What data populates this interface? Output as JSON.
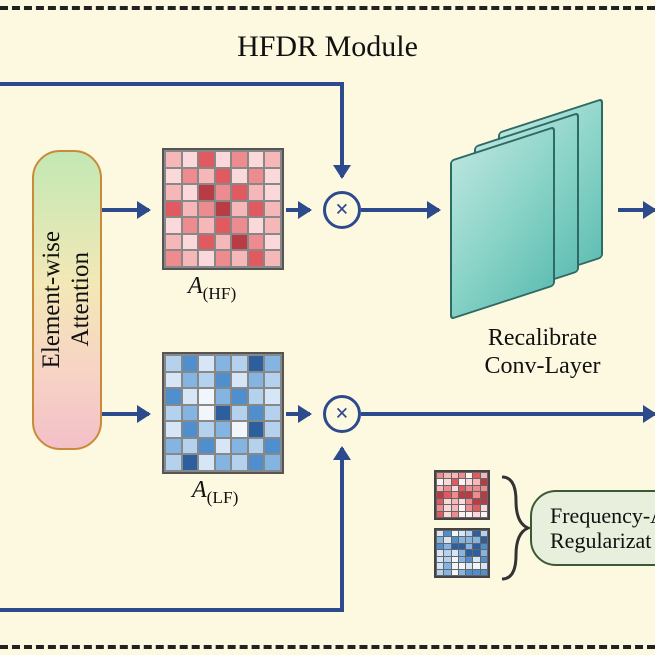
{
  "type": "flowchart",
  "background_color": "#fdf8e0",
  "border": {
    "style": "dashed",
    "color": "#222222",
    "width": 4
  },
  "title": {
    "text": "HFDR Module",
    "fontsize": 30,
    "color": "#111111"
  },
  "blocks": {
    "attention": {
      "label": "Element-wise\nAttention",
      "fontsize": 25,
      "border_color": "#c98b3a",
      "fill_gradient": [
        "#c3e8b4",
        "#f3e8b6",
        "#f7d3c5",
        "#f3c0c8"
      ],
      "border_radius": 28
    },
    "matrix_hf": {
      "label_html": "A<sub>(HF)</sub>",
      "rows": 7,
      "cols": 7,
      "palette": [
        "#fef1f1",
        "#fbd9da",
        "#f6b7b9",
        "#ee8b8f",
        "#e05a60",
        "#b93b43"
      ],
      "cells": [
        [
          2,
          1,
          4,
          1,
          3,
          1,
          2
        ],
        [
          1,
          3,
          2,
          4,
          1,
          3,
          1
        ],
        [
          2,
          1,
          5,
          3,
          4,
          2,
          1
        ],
        [
          4,
          2,
          3,
          5,
          2,
          4,
          2
        ],
        [
          1,
          3,
          2,
          4,
          3,
          1,
          2
        ],
        [
          2,
          1,
          4,
          2,
          5,
          3,
          1
        ],
        [
          3,
          2,
          1,
          3,
          2,
          4,
          2
        ]
      ]
    },
    "matrix_lf": {
      "label_html": "A<sub>(LF)</sub>",
      "rows": 7,
      "cols": 7,
      "palette": [
        "#f1f6fc",
        "#d6e6f6",
        "#b4d1ee",
        "#84b4e2",
        "#4f8fce",
        "#2d5f9e"
      ],
      "cells": [
        [
          2,
          4,
          1,
          3,
          2,
          5,
          3
        ],
        [
          1,
          3,
          2,
          4,
          1,
          3,
          2
        ],
        [
          4,
          1,
          0,
          3,
          4,
          2,
          1
        ],
        [
          2,
          3,
          0,
          5,
          2,
          4,
          2
        ],
        [
          1,
          4,
          2,
          3,
          0,
          5,
          2
        ],
        [
          3,
          2,
          4,
          1,
          3,
          2,
          4
        ],
        [
          2,
          5,
          1,
          3,
          2,
          4,
          3
        ]
      ]
    },
    "conv": {
      "label": "Recalibrate\nConv-Layer",
      "fontsize": 24,
      "plate_fill": [
        "#b7e4dd",
        "#8cd4c8",
        "#61bfb4"
      ],
      "plate_border": "#2d6b66",
      "plate_count": 3
    },
    "reg": {
      "label": "Frequency-Att\nRegularizat",
      "fontsize": 22,
      "fill": "#e8f0dd",
      "border_color": "#3a5a34",
      "border_radius": 26
    },
    "mini_hf": {
      "rows": 7,
      "cols": 7,
      "palette": [
        "#fef1f1",
        "#fbd9da",
        "#f6b7b9",
        "#ee8b8f",
        "#e05a60",
        "#b93b43"
      ]
    },
    "mini_lf": {
      "rows": 7,
      "cols": 7,
      "palette": [
        "#f1f6fc",
        "#d6e6f6",
        "#b4d1ee",
        "#84b4e2",
        "#4f8fce",
        "#2d5f9e"
      ]
    }
  },
  "op": {
    "symbol": "×",
    "border_color": "#2d4b8c"
  },
  "arrow_color": "#2d4b8c",
  "edges": [
    {
      "from": "input-top",
      "to": "op-hf"
    },
    {
      "from": "input-bottom",
      "to": "op-lf"
    },
    {
      "from": "attention",
      "to": "matrix_hf"
    },
    {
      "from": "attention",
      "to": "matrix_lf"
    },
    {
      "from": "matrix_hf",
      "to": "op-hf"
    },
    {
      "from": "matrix_lf",
      "to": "op-lf"
    },
    {
      "from": "op-hf",
      "to": "conv"
    },
    {
      "from": "conv",
      "to": "out-right"
    },
    {
      "from": "op-lf",
      "to": "out-right-lf"
    }
  ]
}
